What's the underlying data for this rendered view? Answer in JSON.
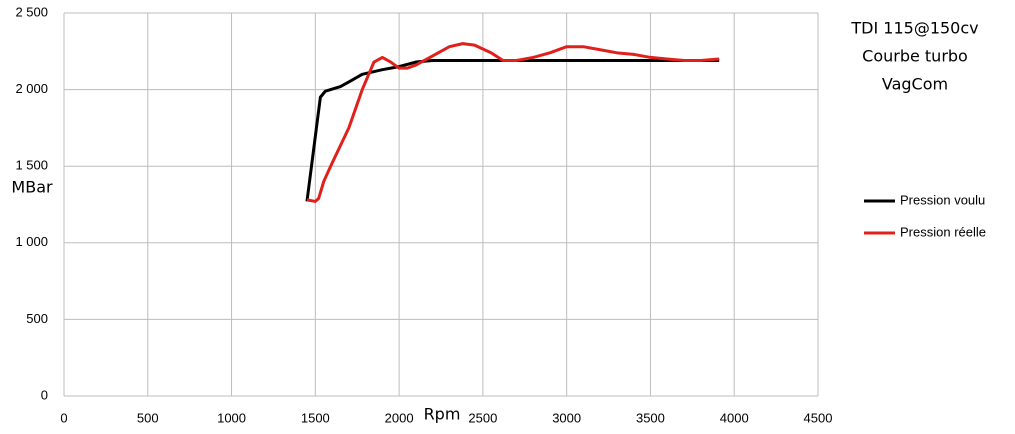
{
  "chart_data": {
    "type": "line",
    "title_lines": [
      "TDI 115@150cv",
      "Courbe turbo",
      "VagCom"
    ],
    "x_label": "Rpm",
    "y_label": "MBar",
    "xlim": [
      0,
      4500
    ],
    "xticks": [
      0,
      500,
      1000,
      1500,
      2000,
      2500,
      3000,
      3500,
      4000,
      4500
    ],
    "ylim": [
      0,
      2500
    ],
    "yticks": [
      0,
      500,
      {
        "value": 1000,
        "label": "1 000"
      },
      {
        "value": 1500,
        "label": "1 500"
      },
      {
        "value": 2000,
        "label": "2 000"
      },
      {
        "value": 2500,
        "label": "2 500"
      }
    ],
    "grid": true,
    "legend": "right",
    "series": [
      {
        "name": "Pression voulu",
        "color": "#000000",
        "x": [
          1450,
          1530,
          1560,
          1650,
          1700,
          1780,
          1900,
          2000,
          2100,
          2200,
          2300,
          2500,
          3000,
          3500,
          3910
        ],
        "values": [
          1270,
          1950,
          1990,
          2020,
          2050,
          2100,
          2130,
          2150,
          2180,
          2190,
          2190,
          2190,
          2190,
          2190,
          2190
        ]
      },
      {
        "name": "Pression réelle",
        "color": "#e0201b",
        "x": [
          1450,
          1500,
          1520,
          1550,
          1600,
          1700,
          1780,
          1850,
          1900,
          1950,
          2000,
          2050,
          2100,
          2200,
          2300,
          2380,
          2450,
          2550,
          2620,
          2700,
          2800,
          2900,
          3000,
          3100,
          3200,
          3300,
          3400,
          3500,
          3600,
          3700,
          3800,
          3910
        ],
        "values": [
          1280,
          1270,
          1290,
          1400,
          1520,
          1750,
          2000,
          2180,
          2210,
          2180,
          2140,
          2140,
          2160,
          2220,
          2280,
          2300,
          2290,
          2240,
          2190,
          2190,
          2210,
          2240,
          2280,
          2280,
          2260,
          2240,
          2230,
          2210,
          2200,
          2190,
          2190,
          2200
        ]
      }
    ]
  }
}
